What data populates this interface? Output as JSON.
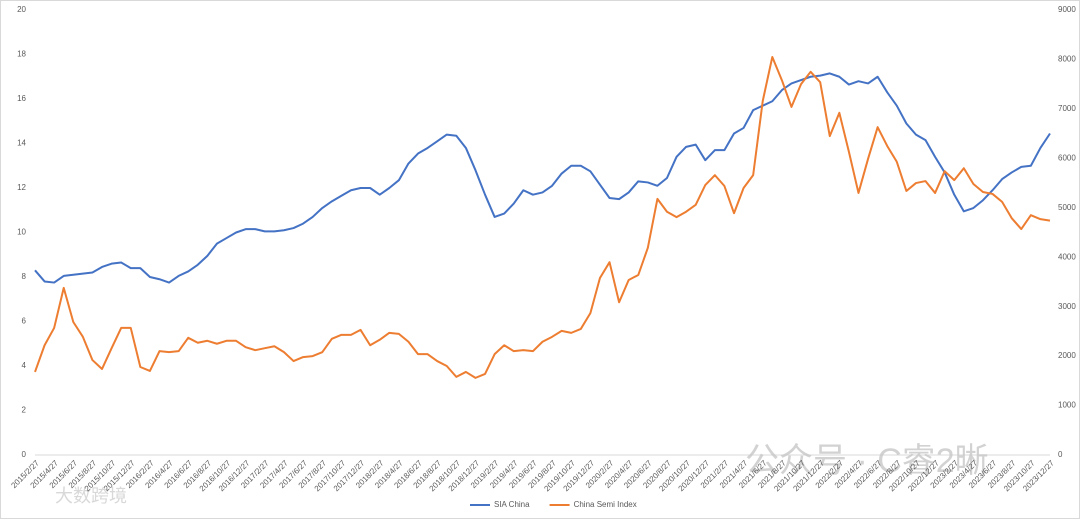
{
  "chart_data": {
    "type": "line",
    "categories": [
      "2015/2/27",
      null,
      "2015/4/27",
      null,
      "2015/6/27",
      null,
      "2015/8/27",
      null,
      "2015/10/27",
      null,
      "2015/12/27",
      null,
      "2016/2/27",
      null,
      "2016/4/27",
      null,
      "2016/6/27",
      null,
      "2016/8/27",
      null,
      "2016/10/27",
      null,
      "2016/12/27",
      null,
      "2017/2/27",
      null,
      "2017/4/27",
      null,
      "2017/6/27",
      null,
      "2017/8/27",
      null,
      "2017/10/27",
      null,
      "2017/12/27",
      null,
      "2018/2/27",
      null,
      "2018/4/27",
      null,
      "2018/6/27",
      null,
      "2018/8/27",
      null,
      "2018/10/27",
      null,
      "2018/12/27",
      null,
      "2019/2/27",
      null,
      "2019/4/27",
      null,
      "2019/6/27",
      null,
      "2019/8/27",
      null,
      "2019/10/27",
      null,
      "2019/12/27",
      null,
      "2020/2/27",
      null,
      "2020/4/27",
      null,
      "2020/6/27",
      null,
      "2020/8/27",
      null,
      "2020/10/27",
      null,
      "2020/12/27",
      null,
      "2021/2/27",
      null,
      "2021/4/27",
      null,
      "2021/6/27",
      null,
      "2021/8/27",
      null,
      "2021/10/27",
      null,
      "2021/12/27",
      null,
      "2022/2/27",
      null,
      "2022/4/27",
      null,
      "2022/6/27",
      null,
      "2022/8/27",
      null,
      "2022/10/27",
      null,
      "2022/12/27",
      null,
      "2023/2/27",
      null,
      "2023/4/27",
      null,
      "2023/6/27",
      null,
      "2023/8/27",
      null,
      "2023/10/27",
      null,
      "2023/12/27"
    ],
    "series": [
      {
        "name": "SIA China",
        "color": "#4472c4",
        "axis": "y",
        "values": [
          8.3,
          7.8,
          7.75,
          8.05,
          8.1,
          8.15,
          8.2,
          8.45,
          8.6,
          8.65,
          8.4,
          8.4,
          8.0,
          7.9,
          7.75,
          8.05,
          8.25,
          8.55,
          8.95,
          9.5,
          9.75,
          10.0,
          10.15,
          10.15,
          10.05,
          10.05,
          10.1,
          10.2,
          10.4,
          10.7,
          11.1,
          11.4,
          11.65,
          11.9,
          12.0,
          12.0,
          11.7,
          12.0,
          12.35,
          13.1,
          13.55,
          13.8,
          14.1,
          14.4,
          14.35,
          13.8,
          12.8,
          11.7,
          10.7,
          10.85,
          11.3,
          11.9,
          11.7,
          11.8,
          12.1,
          12.65,
          13.0,
          13.0,
          12.75,
          12.15,
          11.55,
          11.5,
          11.8,
          12.3,
          12.25,
          12.1,
          12.45,
          13.4,
          13.85,
          13.95,
          13.25,
          13.7,
          13.7,
          14.45,
          14.7,
          15.5,
          15.7,
          15.9,
          16.4,
          16.7,
          16.85,
          17.0,
          17.05,
          17.15,
          17.0,
          16.65,
          16.8,
          16.7,
          17.0,
          16.3,
          15.7,
          14.9,
          14.4,
          14.15,
          13.4,
          12.7,
          11.7,
          10.95,
          11.1,
          11.45,
          11.9,
          12.4,
          12.7,
          12.95,
          13.0,
          13.8,
          14.45
        ]
      },
      {
        "name": "China Semi Index",
        "color": "#ed7d31",
        "axis": "y2",
        "values": [
          1680,
          2220,
          2570,
          3380,
          2690,
          2390,
          1920,
          1740,
          2160,
          2570,
          2570,
          1780,
          1700,
          2100,
          2080,
          2100,
          2370,
          2270,
          2310,
          2250,
          2310,
          2310,
          2180,
          2120,
          2160,
          2200,
          2080,
          1900,
          1980,
          2000,
          2080,
          2350,
          2430,
          2430,
          2530,
          2220,
          2330,
          2470,
          2450,
          2290,
          2040,
          2040,
          1900,
          1800,
          1580,
          1680,
          1560,
          1640,
          2040,
          2220,
          2100,
          2120,
          2100,
          2290,
          2390,
          2510,
          2470,
          2550,
          2870,
          3580,
          3900,
          3090,
          3540,
          3640,
          4190,
          5180,
          4920,
          4810,
          4920,
          5060,
          5460,
          5660,
          5440,
          4890,
          5400,
          5660,
          7160,
          8050,
          7580,
          7040,
          7500,
          7750,
          7540,
          6450,
          6920,
          6130,
          5300,
          5990,
          6630,
          6250,
          5930,
          5340,
          5500,
          5540,
          5300,
          5740,
          5560,
          5800,
          5480,
          5320,
          5280,
          5120,
          4790,
          4570,
          4850,
          4770,
          4740
        ]
      }
    ],
    "ylim": [
      0,
      20
    ],
    "yticks": [
      0,
      2,
      4,
      6,
      8,
      10,
      12,
      14,
      16,
      18,
      20
    ],
    "y2lim": [
      0,
      9000
    ],
    "y2ticks": [
      0,
      1000,
      2000,
      3000,
      4000,
      5000,
      6000,
      7000,
      8000,
      9000
    ],
    "grid": false,
    "legend": "bottom",
    "watermarks": [
      "公众号 · C睿2晰",
      "大数跨境"
    ]
  }
}
